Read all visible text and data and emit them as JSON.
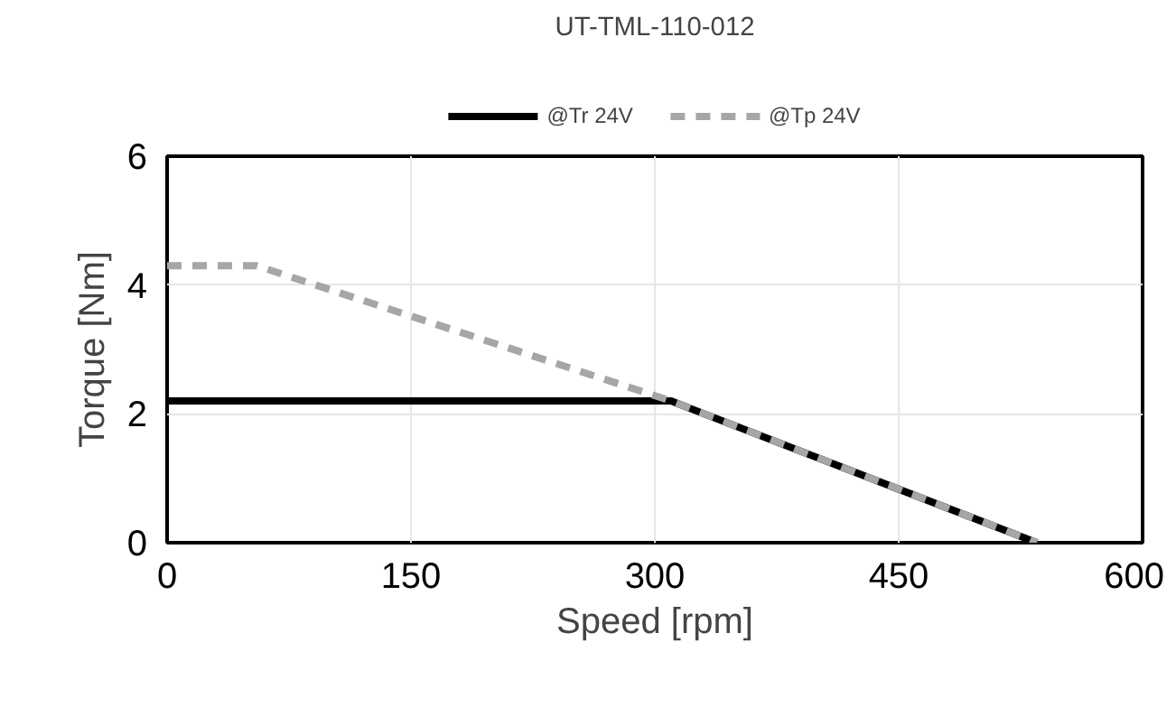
{
  "chart_data": {
    "type": "line",
    "title": "UT-TML-110-012",
    "xlabel": "Speed [rpm]",
    "ylabel": "Torque [Nm]",
    "xlim": [
      0,
      600
    ],
    "xticks": [
      0,
      150,
      300,
      450,
      600
    ],
    "ylim": [
      0,
      6
    ],
    "yticks": [
      0,
      2,
      4,
      6
    ],
    "grid": true,
    "legend": "top",
    "series": [
      {
        "name": "@Tr 24V",
        "color": "#000000",
        "line_style": "solid",
        "x": [
          0,
          310,
          535
        ],
        "values": [
          2.2,
          2.2,
          0
        ]
      },
      {
        "name": "@Tp 24V",
        "color": "#a6a6a6",
        "line_style": "dashed",
        "x": [
          0,
          55,
          310,
          535
        ],
        "values": [
          4.3,
          4.3,
          2.2,
          0
        ]
      }
    ]
  }
}
